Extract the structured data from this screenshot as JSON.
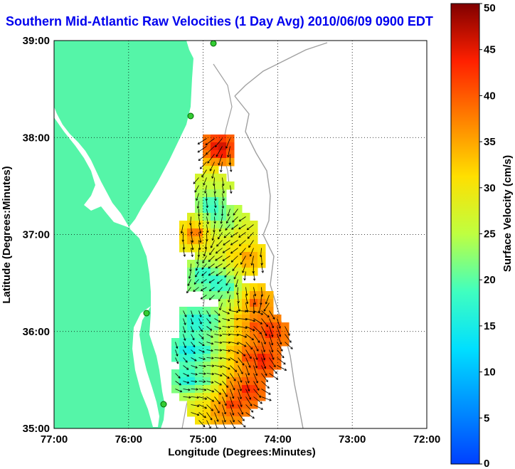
{
  "title": "Southern Mid-Atlantic Raw Velocities (1 Day Avg) 2010/06/09 0900 EDT",
  "chart_data": {
    "type": "heatmap",
    "xlabel": "Longitude (Degrees:Minutes)",
    "ylabel": "Latitude (Degrees:Minutes)",
    "colorbar_label": "Surface Velocity (cm/s)",
    "x_ticks": [
      {
        "value": -77,
        "label": "77:00"
      },
      {
        "value": -76,
        "label": "76:00"
      },
      {
        "value": -75,
        "label": "75:00"
      },
      {
        "value": -74,
        "label": "74:00"
      },
      {
        "value": -73,
        "label": "73:00"
      },
      {
        "value": -72,
        "label": "72:00"
      }
    ],
    "y_ticks": [
      {
        "value": 35,
        "label": "35:00"
      },
      {
        "value": 36,
        "label": "36:00"
      },
      {
        "value": 37,
        "label": "37:00"
      },
      {
        "value": 38,
        "label": "38:00"
      },
      {
        "value": 39,
        "label": "39:00"
      }
    ],
    "xlim": [
      -77,
      -72
    ],
    "ylim": [
      35,
      39
    ],
    "colorbar_ticks": [
      0,
      5,
      10,
      15,
      20,
      25,
      30,
      35,
      40,
      45,
      50
    ],
    "colorbar_range": [
      0,
      50
    ],
    "colormap": "jet",
    "grid": "dotted",
    "land_color": "#55f5a8",
    "vector_color": "#000000",
    "velocity_field": [
      {
        "lon": -74.78,
        "lat": 37.88,
        "speed": 48
      },
      {
        "lon": -74.88,
        "lat": 37.5,
        "speed": 26
      },
      {
        "lon": -74.9,
        "lat": 37.3,
        "speed": 14
      },
      {
        "lon": -74.8,
        "lat": 37.2,
        "speed": 17
      },
      {
        "lon": -74.65,
        "lat": 37.1,
        "speed": 22
      },
      {
        "lon": -74.5,
        "lat": 37.0,
        "speed": 30
      },
      {
        "lon": -75.1,
        "lat": 37.0,
        "speed": 44
      },
      {
        "lon": -74.95,
        "lat": 36.9,
        "speed": 30
      },
      {
        "lon": -74.8,
        "lat": 36.85,
        "speed": 27
      },
      {
        "lon": -74.6,
        "lat": 36.8,
        "speed": 33
      },
      {
        "lon": -74.4,
        "lat": 36.75,
        "speed": 39
      },
      {
        "lon": -75.0,
        "lat": 36.6,
        "speed": 14
      },
      {
        "lon": -74.8,
        "lat": 36.5,
        "speed": 12
      },
      {
        "lon": -74.65,
        "lat": 36.45,
        "speed": 18
      },
      {
        "lon": -74.3,
        "lat": 36.3,
        "speed": 42
      },
      {
        "lon": -75.1,
        "lat": 36.1,
        "speed": 12
      },
      {
        "lon": -74.9,
        "lat": 36.1,
        "speed": 15
      },
      {
        "lon": -74.7,
        "lat": 36.1,
        "speed": 24
      },
      {
        "lon": -74.5,
        "lat": 36.1,
        "speed": 36
      },
      {
        "lon": -74.3,
        "lat": 36.05,
        "speed": 43
      },
      {
        "lon": -74.1,
        "lat": 36.0,
        "speed": 46
      },
      {
        "lon": -75.2,
        "lat": 35.8,
        "speed": 11
      },
      {
        "lon": -75.0,
        "lat": 35.8,
        "speed": 13
      },
      {
        "lon": -74.8,
        "lat": 35.8,
        "speed": 22
      },
      {
        "lon": -74.6,
        "lat": 35.8,
        "speed": 35
      },
      {
        "lon": -74.4,
        "lat": 35.75,
        "speed": 44
      },
      {
        "lon": -74.2,
        "lat": 35.7,
        "speed": 48
      },
      {
        "lon": -75.2,
        "lat": 35.5,
        "speed": 12
      },
      {
        "lon": -75.0,
        "lat": 35.5,
        "speed": 16
      },
      {
        "lon": -74.8,
        "lat": 35.5,
        "speed": 26
      },
      {
        "lon": -74.6,
        "lat": 35.45,
        "speed": 40
      },
      {
        "lon": -74.4,
        "lat": 35.4,
        "speed": 47
      },
      {
        "lon": -75.0,
        "lat": 35.25,
        "speed": 30
      },
      {
        "lon": -74.8,
        "lat": 35.2,
        "speed": 38
      },
      {
        "lon": -74.6,
        "lat": 35.25,
        "speed": 45
      }
    ]
  }
}
